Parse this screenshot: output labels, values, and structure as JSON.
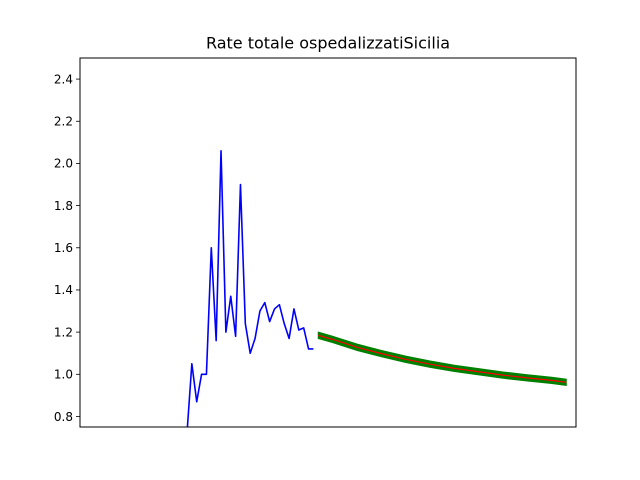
{
  "chart_data": {
    "type": "line",
    "title": "Rate totale ospedalizzatiSicilia",
    "xlabel": "",
    "ylabel": "",
    "ylim": [
      0.75,
      2.5
    ],
    "xlim": [
      -22,
      80
    ],
    "grid": false,
    "yticks": [
      "0.8",
      "1.0",
      "1.2",
      "1.4",
      "1.6",
      "1.8",
      "2.0",
      "2.2",
      "2.4"
    ],
    "colors": {
      "observed": "#0000ff",
      "band": "#008000",
      "forecast": "#ff0000",
      "axes": "#000000",
      "background": "#ffffff"
    },
    "series": [
      {
        "role": "observed",
        "x": [
          0,
          1,
          2,
          3,
          4,
          5,
          6,
          7,
          8,
          9,
          10,
          11,
          12,
          13,
          14,
          15,
          16,
          17,
          18,
          19,
          20,
          21,
          22,
          23,
          24,
          25,
          26
        ],
        "y": [
          0.72,
          1.05,
          0.87,
          1.0,
          1.0,
          1.6,
          1.16,
          2.06,
          1.2,
          1.37,
          1.18,
          1.9,
          1.24,
          1.1,
          1.17,
          1.3,
          1.34,
          1.25,
          1.31,
          1.33,
          1.24,
          1.17,
          1.31,
          1.21,
          1.22,
          1.12,
          1.12
        ]
      },
      {
        "role": "forecast",
        "x": [
          27,
          30,
          35,
          40,
          45,
          50,
          55,
          60,
          65,
          70,
          75,
          78
        ],
        "y": [
          1.185,
          1.165,
          1.128,
          1.098,
          1.071,
          1.048,
          1.028,
          1.012,
          0.996,
          0.983,
          0.971,
          0.962
        ]
      }
    ],
    "band_halfwidth": 0.015
  }
}
